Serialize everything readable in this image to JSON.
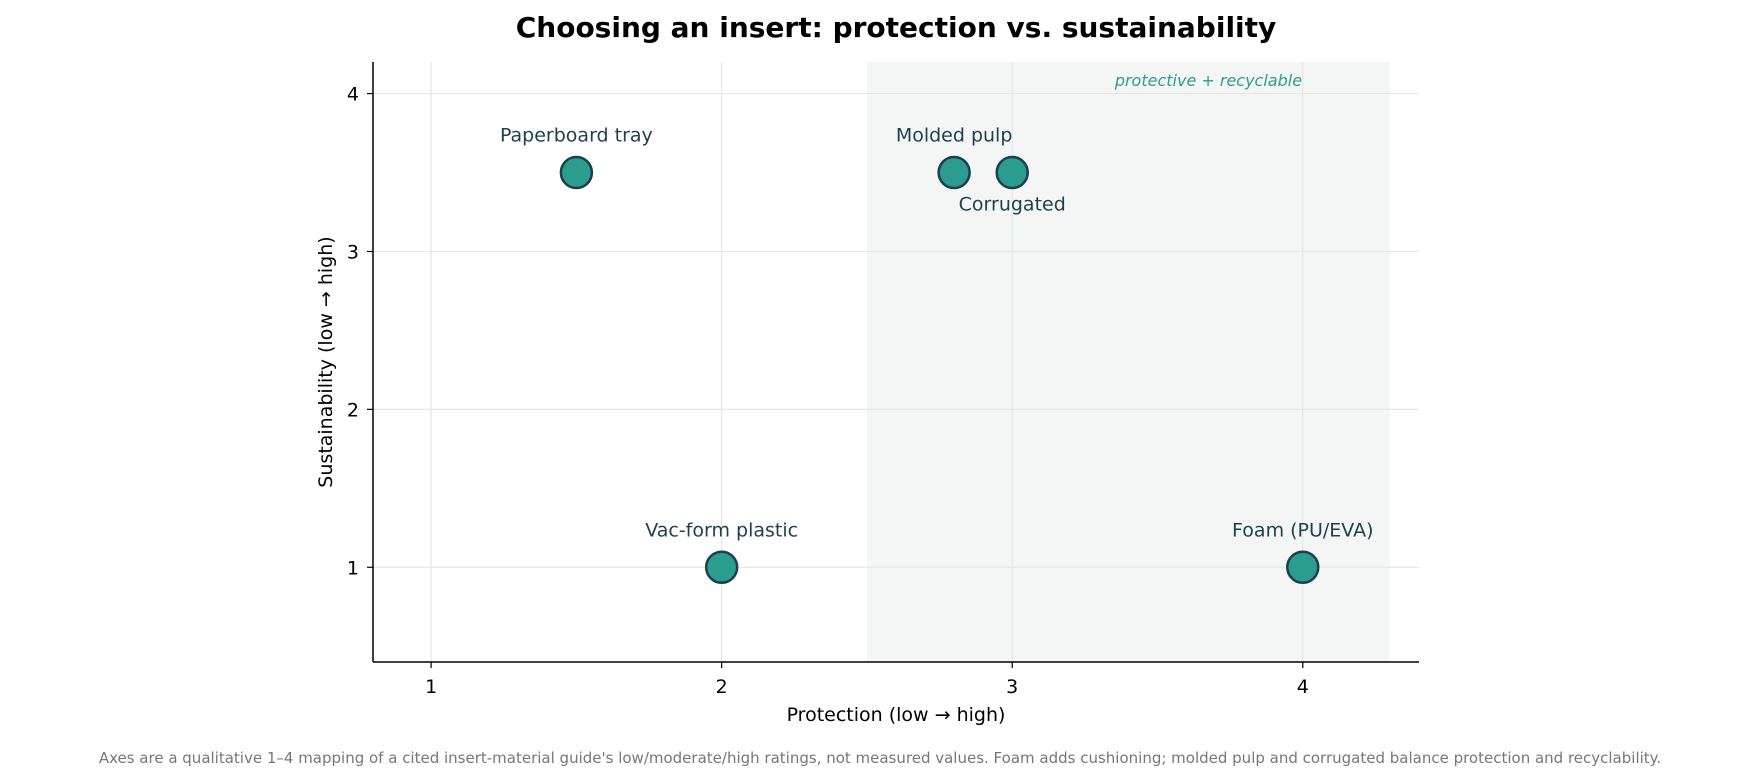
{
  "chart_data": {
    "type": "scatter",
    "title": "Choosing an insert: protection vs. sustainability",
    "xlabel": "Protection  (low  →  high)",
    "ylabel": "Sustainability  (low  →  high)",
    "xlim": [
      0.8,
      4.4
    ],
    "ylim": [
      0.4,
      4.2
    ],
    "xticks": [
      1,
      2,
      3,
      4
    ],
    "yticks": [
      1,
      2,
      3,
      4
    ],
    "xtick_labels": [
      "1",
      "2",
      "3",
      "4"
    ],
    "ytick_labels": [
      "1",
      "2",
      "3",
      "4"
    ],
    "grid": true,
    "highlight_region": {
      "x_range": [
        2.5,
        4.3
      ],
      "label": "protective + recyclable"
    },
    "points": [
      {
        "label": "Paperboard tray",
        "x": 1.5,
        "y": 3.5,
        "label_position": "above"
      },
      {
        "label": "Molded pulp",
        "x": 2.8,
        "y": 3.5,
        "label_position": "above"
      },
      {
        "label": "Corrugated",
        "x": 3.0,
        "y": 3.5,
        "label_position": "below"
      },
      {
        "label": "Vac-form plastic",
        "x": 2.0,
        "y": 1.0,
        "label_position": "above"
      },
      {
        "label": "Foam (PU/EVA)",
        "x": 4.0,
        "y": 1.0,
        "label_position": "above"
      }
    ],
    "caption": "Axes are a qualitative 1–4 mapping of a cited insert-material guide's low/moderate/high ratings, not measured values. Foam adds cushioning; molded pulp and corrugated balance protection and recyclability."
  },
  "colors": {
    "marker_fill": "#2a9d8f",
    "marker_edge": "#1d3f4f",
    "point_label": "#1d3f4f",
    "region_fill": "#f4f6f5",
    "region_label": "#2a9d8f",
    "grid": "#e6e6e6",
    "axis": "#000000"
  }
}
